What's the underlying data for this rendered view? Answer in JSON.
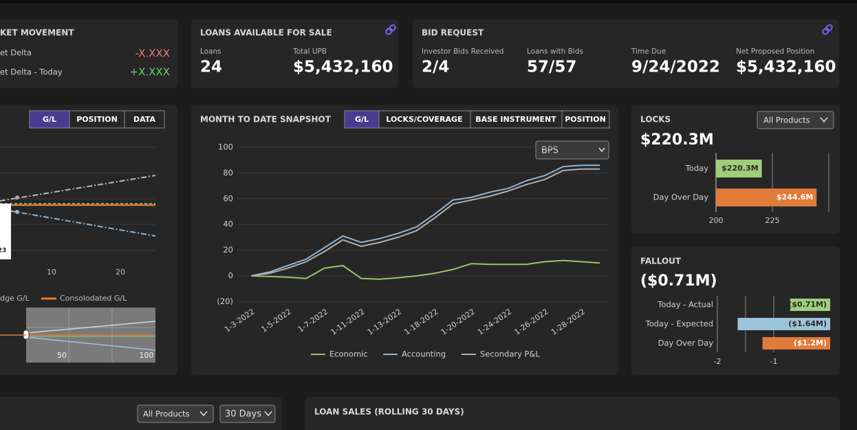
{
  "market_movement": {
    "title": "KET MOVEMENT",
    "rows": [
      {
        "label": "et Delta",
        "value": "-X.XXX"
      },
      {
        "label": "et Delta - Today",
        "value": "+X.XXX"
      }
    ]
  },
  "loans_available": {
    "title": "LOANS AVAILABLE FOR SALE",
    "items": [
      {
        "label": "Loans",
        "value": "24"
      },
      {
        "label": "Total UPB",
        "value": "$5,432,160"
      }
    ]
  },
  "bid_request": {
    "title": "BID REQUEST",
    "items": [
      {
        "label": "Investor Bids Received",
        "value": "2/4"
      },
      {
        "label": "Loans with Bids",
        "value": "57/57"
      },
      {
        "label": "Time Due",
        "value": "9/24/2022"
      },
      {
        "label": "Net Proposed Position",
        "value": "$5,432,160"
      }
    ]
  },
  "gl_panel": {
    "tabs": [
      "G/L",
      "POSITION",
      "DATA"
    ],
    "xticks": [
      "10",
      "20"
    ],
    "tooltip": "23",
    "legend": [
      "dge G/L",
      "Consolodated G/L"
    ],
    "mini_ticks": [
      "50",
      "100"
    ]
  },
  "chart_data": [
    {
      "type": "line",
      "title": "MONTH TO DATE SNAPSHOT",
      "tabs": [
        "G/L",
        "LOCKS/COVERAGE",
        "BASE INSTRUMENT",
        "POSITION"
      ],
      "unit_select": "BPS",
      "categories": [
        "1-3-2022",
        null,
        "1-5-2022",
        null,
        "1-7-2022",
        null,
        "1-11-2022",
        null,
        "1-13-2022",
        null,
        "1-18-2022",
        null,
        "1-20-2022",
        null,
        "1-24-2022",
        null,
        "1-26-2022",
        null,
        "1-28-2022",
        null
      ],
      "series": [
        {
          "name": "Economic",
          "color": "#9bc46d",
          "values": [
            0,
            -0.5,
            -1,
            -2,
            6,
            8,
            -2,
            -2.5,
            -1.5,
            0,
            2,
            5,
            9.5,
            9,
            9,
            9,
            11,
            12,
            11,
            10
          ]
        },
        {
          "name": "Accounting",
          "color": "#8fb5d6",
          "values": [
            0,
            3,
            8,
            13,
            22,
            31,
            26,
            29,
            33,
            38,
            48,
            59,
            61,
            65,
            68,
            74,
            78,
            85,
            86,
            86
          ]
        },
        {
          "name": "Secondary P&L",
          "color": "#b0b0b0",
          "values": [
            0,
            2,
            6,
            11,
            19,
            28,
            23,
            26,
            30,
            35,
            45,
            56,
            59,
            62,
            66,
            71,
            75,
            82,
            83,
            83
          ]
        }
      ],
      "ylim": [
        -20,
        100
      ],
      "yticks": [
        100,
        80,
        60,
        40,
        20,
        0,
        {
          "value": -20,
          "label": "(20)"
        }
      ],
      "grid": true
    },
    {
      "type": "hbar",
      "title": "LOCKS",
      "filter": "All Products",
      "headline": "$220.3M",
      "categories": [
        "Today",
        "Day Over Day"
      ],
      "values": [
        220.3,
        244.6
      ],
      "value_labels": [
        "$220.3M",
        "$244.6M"
      ],
      "colors": [
        "#9fce7a",
        "#e07b39"
      ],
      "xlim": [
        200,
        250
      ],
      "xticks": [
        200,
        225
      ]
    },
    {
      "type": "hbar",
      "title": "FALLOUT",
      "headline": "($0.71M)",
      "categories": [
        "Today - Actual",
        "Today - Expected",
        "Day Over Day"
      ],
      "values": [
        -0.71,
        -1.64,
        -1.2
      ],
      "value_labels": [
        "($0.71M)",
        "($1.64M)",
        "($1.2M)"
      ],
      "colors": [
        "#9fce7a",
        "#9cc3da",
        "#e07b39"
      ],
      "xlim": [
        -2,
        0
      ],
      "xticks": [
        -2,
        -1
      ]
    }
  ],
  "bottom": {
    "filters": [
      "All Products",
      "30 Days"
    ],
    "loan_sales_title": "LOAN SALES (ROLLING 30 DAYS)"
  }
}
